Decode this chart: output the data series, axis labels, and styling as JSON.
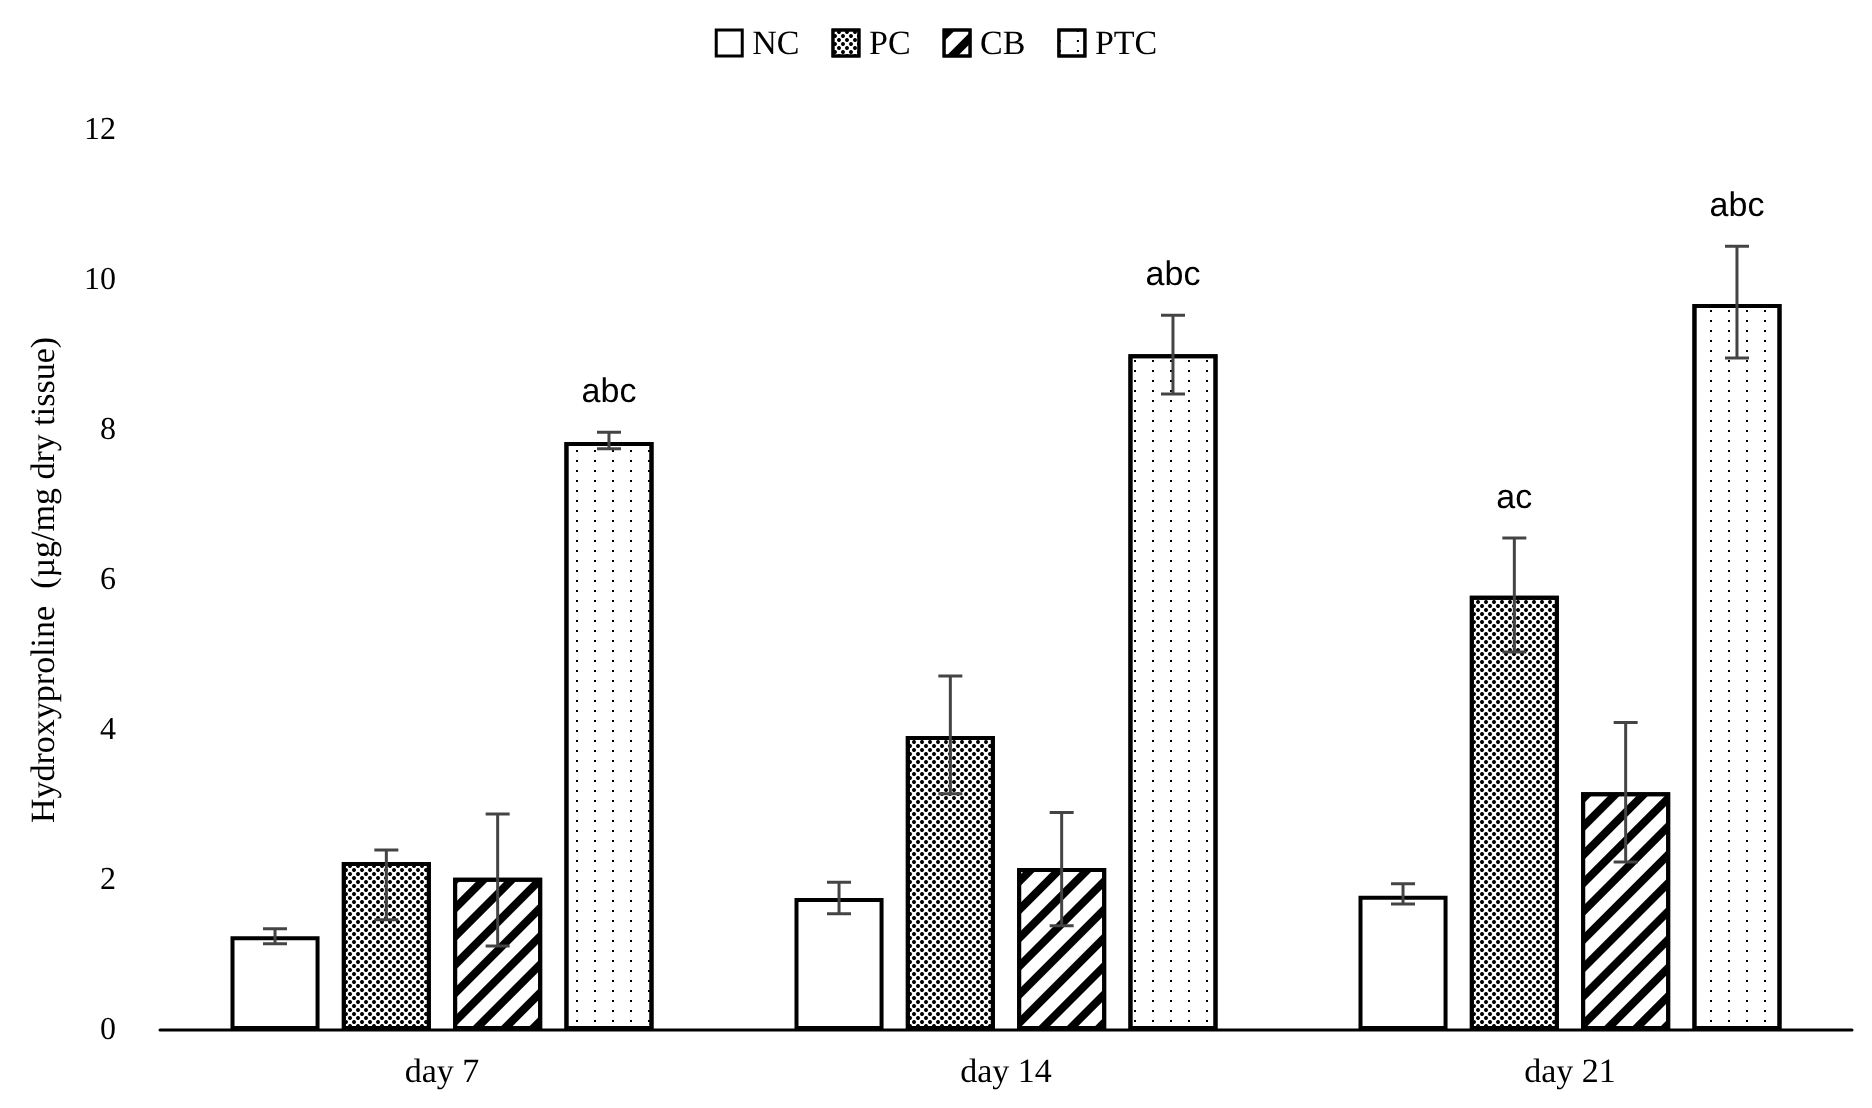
{
  "chart_data": {
    "type": "bar",
    "ylabel": "Hydroxyproline  (µg/mg dry tissue)",
    "categories": [
      "day 7",
      "day 14",
      "day 21"
    ],
    "series": [
      {
        "name": "NC",
        "color": "#ffffff",
        "values": [
          1.25,
          1.76,
          1.79
        ],
        "errors": [
          [
            1.15,
            1.35
          ],
          [
            1.55,
            1.97
          ],
          [
            1.68,
            1.95
          ]
        ]
      },
      {
        "name": "PC",
        "color": "#ffffff",
        "values": [
          2.24,
          3.92,
          5.79
        ],
        "errors": [
          [
            1.47,
            2.4
          ],
          [
            3.15,
            4.72
          ],
          [
            5.04,
            6.56
          ]
        ],
        "value_labels": [
          null,
          null,
          "ac"
        ]
      },
      {
        "name": "CB",
        "color": "#ffffff",
        "values": [
          2.03,
          2.16,
          3.17
        ],
        "errors": [
          [
            1.12,
            2.88
          ],
          [
            1.39,
            2.9
          ],
          [
            2.24,
            4.1
          ]
        ]
      },
      {
        "name": "PTC",
        "color": "#ffffff",
        "values": [
          7.84,
          9.01,
          9.68
        ],
        "errors": [
          [
            7.75,
            7.97
          ],
          [
            8.48,
            9.53
          ],
          [
            8.96,
            10.45
          ]
        ],
        "value_labels": [
          "abc",
          "abc",
          "abc"
        ]
      }
    ],
    "ylim": [
      0,
      12
    ],
    "yticks": [
      0,
      2,
      4,
      6,
      8,
      10,
      12
    ],
    "grid": false,
    "legend": "top"
  }
}
